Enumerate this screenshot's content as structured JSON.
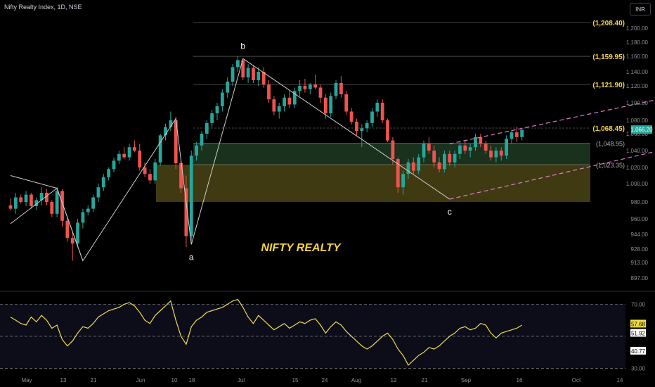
{
  "header": {
    "title": "Nifty Realty Index, 1D, NSE",
    "currency": "INR"
  },
  "colors": {
    "up": "#26a69a",
    "down": "#ef5350",
    "level_label": "#f7d154",
    "annotation": "#f5d33a",
    "green_zone": "#1d3a22",
    "yellow_zone": "#4a4414",
    "channel": "#e07bd6",
    "rsi_line": "#f0dc4a",
    "wave_line": "#cfcfcf"
  },
  "chart_data": [
    {
      "type": "candlestick",
      "yticks": [
        1200,
        1180,
        1160,
        1140,
        1120,
        1100,
        1080,
        1060,
        1040,
        1020,
        1000,
        980,
        960,
        944,
        928,
        913,
        897
      ],
      "ytick_labels": [
        "1,200.00",
        "1,180.00",
        "1,160.00",
        "1,140.00",
        "1,120.00",
        "1,100.00",
        "1,080.00",
        "1,060.00",
        "1,040.00",
        "1,020.00",
        "1,000.00",
        "980.00",
        "960.00",
        "944.00",
        "928.00",
        "913.00",
        "897.00"
      ],
      "xticks": [
        "May",
        "13",
        "21",
        "Jun",
        "10",
        "18",
        "Jul",
        "15",
        "24",
        "Aug",
        "12",
        "21",
        "Sep",
        "16",
        "Oct",
        "14"
      ],
      "levels": [
        {
          "value": 1208.4,
          "label": "(1,208.40)"
        },
        {
          "value": 1159.95,
          "label": "(1,159.95)"
        },
        {
          "value": 1121.9,
          "label": "(1,121.90)"
        },
        {
          "value": 1068.45,
          "label": "(1,068.45)"
        }
      ],
      "minor_levels": [
        {
          "value": 1048.95,
          "label": "(1,048.95)"
        },
        {
          "value": 1023.35,
          "label": "(1,023.35)"
        }
      ],
      "zones": [
        {
          "name": "green",
          "from": 1023.35,
          "to": 1048.95
        },
        {
          "name": "yellow",
          "from": 980,
          "to": 1023.35
        }
      ],
      "last_price": "1,066.20",
      "wave_labels": [
        {
          "text": "a",
          "date_index": 35,
          "value": 933
        },
        {
          "text": "b",
          "date_index": 45,
          "value": 1157
        },
        {
          "text": "c",
          "date_index": 85,
          "value": 983
        }
      ],
      "wave_path": [
        [
          0,
          1010
        ],
        [
          9,
          995
        ],
        [
          14,
          915
        ],
        [
          32,
          1082
        ],
        [
          35,
          933
        ],
        [
          45,
          1157
        ],
        [
          85,
          983
        ]
      ],
      "early_path": [
        [
          0,
          955
        ],
        [
          9,
          995
        ],
        [
          14,
          915
        ]
      ],
      "channel": {
        "upper": [
          [
            85,
            1048
          ],
          [
            130,
            1110
          ]
        ],
        "lower": [
          [
            85,
            983
          ],
          [
            127,
            1042
          ]
        ]
      },
      "annotation": "NIFTY REALTY",
      "candles": [
        [
          976,
          984,
          970,
          972
        ],
        [
          972,
          990,
          966,
          985
        ],
        [
          985,
          988,
          978,
          980
        ],
        [
          980,
          992,
          975,
          988
        ],
        [
          988,
          990,
          972,
          975
        ],
        [
          975,
          985,
          970,
          982
        ],
        [
          982,
          996,
          976,
          990
        ],
        [
          990,
          994,
          976,
          980
        ],
        [
          980,
          982,
          962,
          966
        ],
        [
          966,
          996,
          962,
          992
        ],
        [
          992,
          994,
          952,
          958
        ],
        [
          958,
          962,
          936,
          940
        ],
        [
          940,
          946,
          915,
          934
        ],
        [
          934,
          960,
          930,
          956
        ],
        [
          956,
          972,
          950,
          968
        ],
        [
          968,
          976,
          964,
          972
        ],
        [
          972,
          988,
          968,
          985
        ],
        [
          985,
          1000,
          980,
          996
        ],
        [
          996,
          1012,
          992,
          1008
        ],
        [
          1008,
          1020,
          1004,
          1018
        ],
        [
          1018,
          1032,
          1014,
          1028
        ],
        [
          1028,
          1040,
          1024,
          1036
        ],
        [
          1036,
          1044,
          1030,
          1032
        ],
        [
          1032,
          1048,
          1028,
          1044
        ],
        [
          1044,
          1052,
          1038,
          1040
        ],
        [
          1040,
          1048,
          1016,
          1020
        ],
        [
          1020,
          1026,
          1008,
          1012
        ],
        [
          1012,
          1018,
          1000,
          1004
        ],
        [
          1004,
          1030,
          1000,
          1026
        ],
        [
          1026,
          1060,
          1022,
          1058
        ],
        [
          1058,
          1075,
          1052,
          1070
        ],
        [
          1070,
          1090,
          1064,
          1080
        ],
        [
          1080,
          1084,
          1018,
          1025
        ],
        [
          1025,
          1028,
          990,
          995
        ],
        [
          995,
          1010,
          930,
          942
        ],
        [
          942,
          1040,
          936,
          1034
        ],
        [
          1034,
          1050,
          1028,
          1046
        ],
        [
          1046,
          1064,
          1040,
          1060
        ],
        [
          1060,
          1080,
          1054,
          1076
        ],
        [
          1076,
          1092,
          1070,
          1088
        ],
        [
          1088,
          1100,
          1080,
          1096
        ],
        [
          1096,
          1116,
          1090,
          1112
        ],
        [
          1112,
          1132,
          1106,
          1126
        ],
        [
          1126,
          1150,
          1120,
          1146
        ],
        [
          1146,
          1160,
          1140,
          1155
        ],
        [
          1155,
          1157,
          1128,
          1132
        ],
        [
          1132,
          1150,
          1124,
          1145
        ],
        [
          1145,
          1148,
          1124,
          1128
        ],
        [
          1128,
          1146,
          1120,
          1140
        ],
        [
          1140,
          1146,
          1118,
          1122
        ],
        [
          1122,
          1128,
          1100,
          1104
        ],
        [
          1104,
          1108,
          1086,
          1090
        ],
        [
          1090,
          1100,
          1082,
          1096
        ],
        [
          1096,
          1110,
          1090,
          1106
        ],
        [
          1106,
          1114,
          1094,
          1098
        ],
        [
          1098,
          1118,
          1094,
          1114
        ],
        [
          1114,
          1128,
          1108,
          1120
        ],
        [
          1120,
          1130,
          1112,
          1116
        ],
        [
          1116,
          1124,
          1110,
          1122
        ],
        [
          1122,
          1136,
          1116,
          1118
        ],
        [
          1118,
          1122,
          1100,
          1106
        ],
        [
          1106,
          1110,
          1082,
          1088
        ],
        [
          1088,
          1112,
          1084,
          1108
        ],
        [
          1108,
          1128,
          1104,
          1124
        ],
        [
          1124,
          1134,
          1106,
          1110
        ],
        [
          1110,
          1114,
          1086,
          1090
        ],
        [
          1090,
          1094,
          1074,
          1078
        ],
        [
          1078,
          1082,
          1058,
          1064
        ],
        [
          1064,
          1074,
          1044,
          1068
        ],
        [
          1068,
          1080,
          1062,
          1076
        ],
        [
          1076,
          1094,
          1070,
          1090
        ],
        [
          1090,
          1104,
          1084,
          1100
        ],
        [
          1100,
          1104,
          1076,
          1080
        ],
        [
          1080,
          1082,
          1050,
          1052
        ],
        [
          1052,
          1056,
          1024,
          1030
        ],
        [
          1030,
          1032,
          990,
          996
        ],
        [
          996,
          1016,
          988,
          1012
        ],
        [
          1012,
          1030,
          1006,
          1026
        ],
        [
          1026,
          1032,
          1012,
          1016
        ],
        [
          1016,
          1036,
          1012,
          1032
        ],
        [
          1032,
          1052,
          1026,
          1048
        ],
        [
          1048,
          1056,
          1036,
          1040
        ],
        [
          1040,
          1046,
          1020,
          1026
        ],
        [
          1026,
          1032,
          1014,
          1018
        ],
        [
          1018,
          1040,
          1014,
          1036
        ],
        [
          1036,
          1040,
          1022,
          1026
        ],
        [
          1026,
          1040,
          1020,
          1036
        ],
        [
          1036,
          1050,
          1030,
          1046
        ],
        [
          1046,
          1052,
          1036,
          1040
        ],
        [
          1040,
          1048,
          1032,
          1044
        ],
        [
          1044,
          1060,
          1040,
          1056
        ],
        [
          1056,
          1060,
          1044,
          1048
        ],
        [
          1048,
          1052,
          1036,
          1040
        ],
        [
          1040,
          1046,
          1028,
          1032
        ],
        [
          1032,
          1044,
          1026,
          1040
        ],
        [
          1040,
          1044,
          1028,
          1034
        ],
        [
          1034,
          1058,
          1030,
          1054
        ],
        [
          1054,
          1066,
          1048,
          1062
        ],
        [
          1062,
          1070,
          1050,
          1056
        ],
        [
          1056,
          1066,
          1052,
          1066
        ]
      ]
    },
    {
      "type": "line",
      "name": "RSI",
      "ylim": [
        28,
        75
      ],
      "yticks": [
        70,
        30
      ],
      "ytick_labels": [
        "70.00",
        "30.00"
      ],
      "bands": [
        70,
        50,
        30
      ],
      "badges": [
        "57.68",
        "51.92",
        "40.77"
      ],
      "values": [
        62,
        60,
        58,
        57,
        62,
        59,
        63,
        60,
        55,
        57,
        48,
        44,
        47,
        52,
        56,
        55,
        58,
        62,
        64,
        66,
        67,
        68,
        70,
        71,
        69,
        65,
        60,
        58,
        63,
        66,
        69,
        72,
        60,
        50,
        45,
        56,
        60,
        62,
        65,
        66,
        67,
        68,
        70,
        72,
        73,
        68,
        62,
        58,
        63,
        60,
        57,
        54,
        56,
        58,
        55,
        57,
        59,
        58,
        60,
        61,
        57,
        52,
        56,
        59,
        57,
        53,
        50,
        47,
        44,
        42,
        44,
        47,
        50,
        52,
        48,
        42,
        38,
        32,
        35,
        38,
        40,
        43,
        42,
        44,
        47,
        50,
        52,
        55,
        56,
        54,
        55,
        58,
        57,
        52,
        49,
        52,
        53,
        54,
        55,
        57
      ]
    }
  ]
}
